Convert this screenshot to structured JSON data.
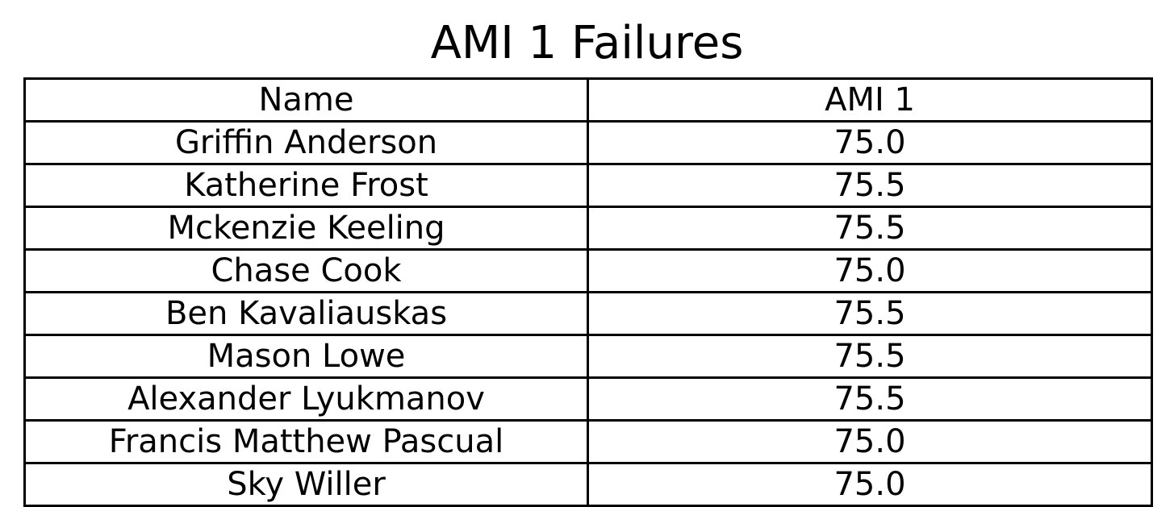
{
  "chart_data": {
    "type": "table",
    "title": "AMI 1 Failures",
    "columns": [
      "Name",
      "AMI 1"
    ],
    "rows": [
      [
        "Griffin Anderson",
        "75.0"
      ],
      [
        "Katherine Frost",
        "75.5"
      ],
      [
        "Mckenzie Keeling",
        "75.5"
      ],
      [
        "Chase Cook",
        "75.0"
      ],
      [
        "Ben Kavaliauskas",
        "75.5"
      ],
      [
        "Mason Lowe",
        "75.5"
      ],
      [
        "Alexander Lyukmanov",
        "75.5"
      ],
      [
        "Francis Matthew Pascual",
        "75.0"
      ],
      [
        "Sky Willer",
        "75.0"
      ]
    ]
  }
}
